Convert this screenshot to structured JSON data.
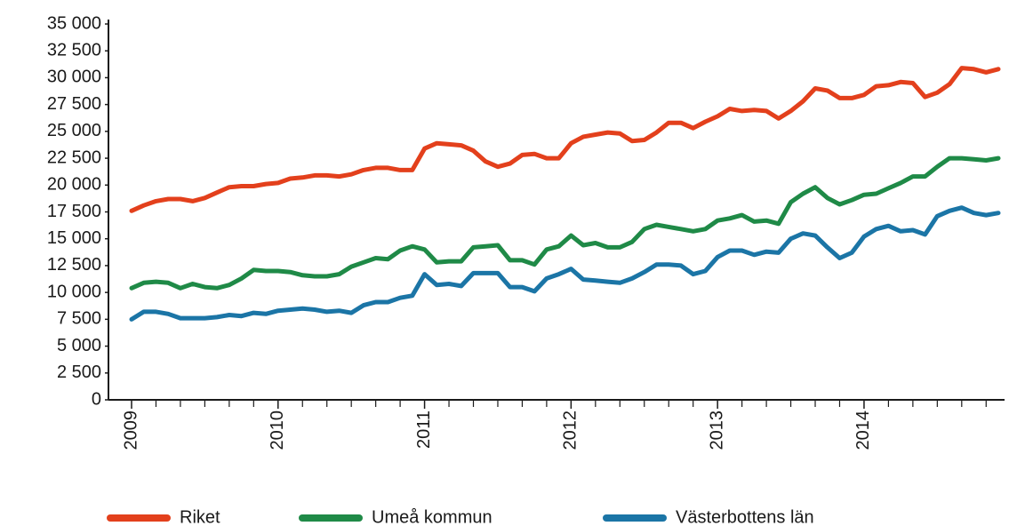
{
  "chart_data": {
    "type": "line",
    "categories": [
      "2009",
      null,
      null,
      null,
      null,
      null,
      null,
      null,
      null,
      null,
      null,
      null,
      "2010",
      null,
      null,
      null,
      null,
      null,
      null,
      null,
      null,
      null,
      null,
      null,
      "2011",
      null,
      null,
      null,
      null,
      null,
      null,
      null,
      null,
      null,
      null,
      null,
      "2012",
      null,
      null,
      null,
      null,
      null,
      null,
      null,
      null,
      null,
      null,
      null,
      "2013",
      null,
      null,
      null,
      null,
      null,
      null,
      null,
      null,
      null,
      null,
      null,
      "2014",
      null,
      null,
      null,
      null,
      null,
      null,
      null,
      null,
      null,
      null,
      null
    ],
    "series": [
      {
        "name": "Riket",
        "color": "#e3401c",
        "values": [
          17600,
          18100,
          18500,
          18700,
          18700,
          18500,
          18800,
          19300,
          19800,
          19900,
          19900,
          20100,
          20200,
          20600,
          20700,
          20900,
          20900,
          20800,
          21000,
          21400,
          21600,
          21600,
          21400,
          21400,
          23400,
          23900,
          23800,
          23700,
          23200,
          22200,
          21700,
          22000,
          22800,
          22900,
          22500,
          22500,
          23900,
          24500,
          24700,
          24900,
          24800,
          24100,
          24200,
          24900,
          25800,
          25800,
          25300,
          25900,
          26400,
          27100,
          26900,
          27000,
          26900,
          26200,
          26900,
          27800,
          29000,
          28800,
          28100,
          28100,
          28400,
          29200,
          29300,
          29600,
          29500,
          28200,
          28600,
          29400,
          30900,
          30800,
          30500,
          30800
        ]
      },
      {
        "name": "Umeå kommun",
        "color": "#1f8a47",
        "values": [
          10400,
          10900,
          11000,
          10900,
          10400,
          10800,
          10500,
          10400,
          10700,
          11300,
          12100,
          12000,
          12000,
          11900,
          11600,
          11500,
          11500,
          11700,
          12400,
          12800,
          13200,
          13100,
          13900,
          14300,
          14000,
          12800,
          12900,
          12900,
          14200,
          14300,
          14400,
          13000,
          13000,
          12600,
          14000,
          14300,
          15300,
          14400,
          14600,
          14200,
          14200,
          14700,
          15900,
          16300,
          16100,
          15900,
          15700,
          15900,
          16700,
          16900,
          17200,
          16600,
          16700,
          16400,
          18400,
          19200,
          19800,
          18800,
          18200,
          18600,
          19100,
          19200,
          19700,
          20200,
          20800,
          20800,
          21700,
          22500,
          22500,
          22400,
          22300,
          22500
        ]
      },
      {
        "name": "Västerbottens län",
        "color": "#1b75a6",
        "values": [
          7500,
          8200,
          8200,
          8000,
          7600,
          7600,
          7600,
          7700,
          7900,
          7800,
          8100,
          8000,
          8300,
          8400,
          8500,
          8400,
          8200,
          8300,
          8100,
          8800,
          9100,
          9100,
          9500,
          9700,
          11700,
          10700,
          10800,
          10600,
          11800,
          11800,
          11800,
          10500,
          10500,
          10100,
          11300,
          11700,
          12200,
          11200,
          11100,
          11000,
          10900,
          11300,
          11900,
          12600,
          12600,
          12500,
          11700,
          12000,
          13300,
          13900,
          13900,
          13500,
          13800,
          13700,
          15000,
          15500,
          15300,
          14200,
          13200,
          13700,
          15200,
          15900,
          16200,
          15700,
          15800,
          15400,
          17100,
          17600,
          17900,
          17400,
          17200,
          17400
        ]
      }
    ],
    "ylim": [
      0,
      35000
    ],
    "yticks": [
      0,
      {
        "value": 2500,
        "label": "2 500"
      },
      {
        "value": 5000,
        "label": "5 000"
      },
      {
        "value": 7500,
        "label": "7 500"
      },
      {
        "value": 10000,
        "label": "10 000"
      },
      {
        "value": 12500,
        "label": "12 500"
      },
      {
        "value": 15000,
        "label": "15 000"
      },
      {
        "value": 17500,
        "label": "17 500"
      },
      {
        "value": 20000,
        "label": "20 000"
      },
      {
        "value": 22500,
        "label": "22 500"
      },
      {
        "value": 25000,
        "label": "25 000"
      },
      {
        "value": 27500,
        "label": "27 500"
      },
      {
        "value": 30000,
        "label": "30 000"
      },
      {
        "value": 32500,
        "label": "32 500"
      },
      {
        "value": 35000,
        "label": "35 000"
      }
    ],
    "grid": false
  }
}
